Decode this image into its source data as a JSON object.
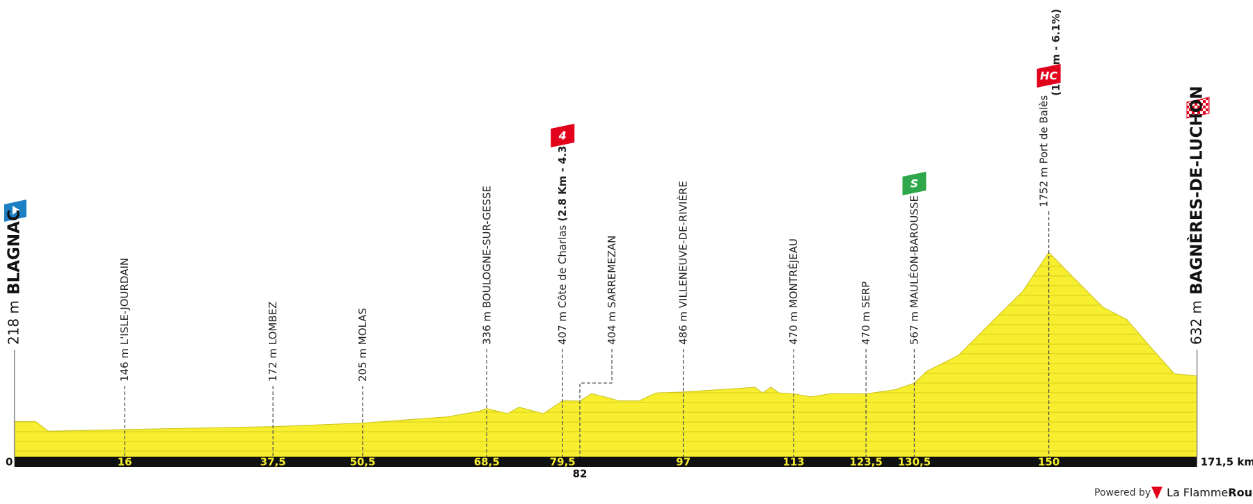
{
  "chart_data": {
    "type": "area",
    "color": "#f6ee2e",
    "x": [
      0,
      3.1,
      4.9,
      16,
      37.5,
      50.5,
      62.8,
      67.4,
      68.5,
      71.5,
      73.2,
      76.7,
      79.5,
      82,
      83.7,
      86,
      87.7,
      90.6,
      93,
      97,
      107.4,
      108.5,
      109.7,
      110.9,
      113,
      115.5,
      118.4,
      123.5,
      127.7,
      130.5,
      132.3,
      136.9,
      141.5,
      146.2,
      150,
      153.3,
      157.9,
      161.3,
      164.8,
      168.2,
      171.5
    ],
    "values": [
      218,
      218,
      131,
      146,
      172,
      205,
      261,
      312,
      336,
      290,
      348,
      290,
      407,
      404,
      471,
      435,
      406,
      406,
      478,
      486,
      529,
      478,
      529,
      478,
      470,
      442,
      471,
      470,
      507,
      567,
      674,
      818,
      1108,
      1397,
      1752,
      1542,
      1253,
      1144,
      891,
      652,
      632
    ],
    "xlim": [
      0,
      171.5
    ],
    "xticks": [
      0,
      16,
      {
        "value": 37.5,
        "label": "37,5"
      },
      {
        "value": 50.5,
        "label": "50,5"
      },
      {
        "value": 68.5,
        "label": "68,5"
      },
      {
        "value": 79.5,
        "label": "79,5"
      },
      82,
      97,
      113,
      {
        "value": 123.5,
        "label": "123,5"
      },
      {
        "value": 130.5,
        "label": "130,5"
      },
      150,
      {
        "value": 171.5,
        "label": "171,5 km"
      }
    ],
    "start": {
      "label": "218 m",
      "name": "BLAGNAC"
    },
    "finish": {
      "label": "632 m",
      "name": "BAGNÈRES-DE-LUCHON"
    },
    "waypoints": [
      {
        "label": "146 m L'ISLE-JOURDAIN"
      },
      {
        "label": "172 m LOMBEZ"
      },
      {
        "label": "205 m MOLAS"
      },
      {
        "label": "336 m BOULOGNE-SUR-GESSE"
      },
      {
        "label": "407 m Côte de Charlas",
        "note": "(2.8 Km - 4.3%)",
        "category": "4"
      },
      {
        "label": "404 m SARREMEZAN"
      },
      {
        "label": "486 m VILLENEUVE-DE-RIVIÈRE"
      },
      {
        "label": "470 m MONTRÉJEAU"
      },
      {
        "label": "470 m SERP"
      },
      {
        "label": "567 m MAULÉON-BAROUSSE",
        "category": "S"
      },
      {
        "label": "1752 m Port de Balès",
        "note": "(19 Km - 6.1%)",
        "category": "HC"
      }
    ],
    "footer": {
      "powered_by": "Powered by",
      "brand": "La Flamme",
      "brand_bold": "Rouge"
    }
  }
}
